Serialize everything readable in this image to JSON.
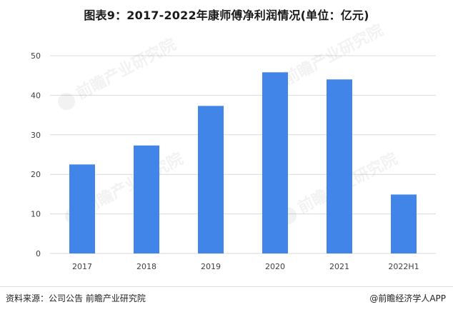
{
  "chart_data": {
    "type": "bar",
    "title": "图表9：2017-2022年康师傅净利润情况(单位：亿元)",
    "categories": [
      "2017",
      "2018",
      "2019",
      "2020",
      "2021",
      "2022H1"
    ],
    "values": [
      22.5,
      27.3,
      37.3,
      45.8,
      44.0,
      14.9
    ],
    "xlabel": "",
    "ylabel": "",
    "ylim": [
      0,
      50
    ],
    "yticks": [
      "0",
      "10",
      "20",
      "30",
      "40",
      "50"
    ],
    "grid": true,
    "bar_color": "#4285e8"
  },
  "footer": {
    "source": "资料来源：公司公告 前瞻产业研究院",
    "brand": "@前瞻经济学人APP"
  },
  "watermark": {
    "text": "前瞻产业研究院",
    "icon": "qianzhan-logo-icon"
  }
}
